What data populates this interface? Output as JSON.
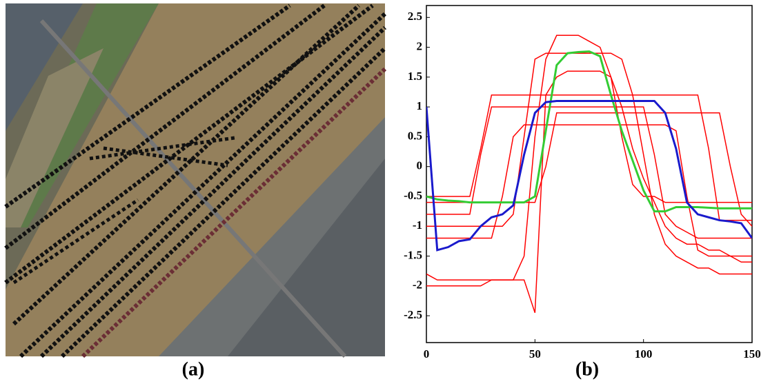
{
  "image_panel": {
    "caption": "(a)"
  },
  "chart_data": {
    "type": "line",
    "caption": "(b)",
    "x": [
      0,
      5,
      10,
      15,
      20,
      25,
      30,
      35,
      40,
      45,
      50,
      55,
      60,
      65,
      70,
      75,
      80,
      85,
      90,
      95,
      100,
      105,
      110,
      115,
      120,
      125,
      130,
      135,
      140,
      145,
      150
    ],
    "xlim": [
      0,
      150
    ],
    "xticks": [
      0,
      50,
      100,
      150
    ],
    "ylim": [
      -2.95,
      2.7
    ],
    "yticks": [
      -2.5,
      -2,
      -1.5,
      -1,
      -0.5,
      0,
      0.5,
      1,
      1.5,
      2,
      2.5
    ],
    "series": [
      {
        "color": "#ff0000",
        "values": [
          -0.8,
          -0.8,
          -0.8,
          -0.8,
          -0.8,
          0.2,
          1.0,
          1.0,
          1.0,
          1.0,
          1.0,
          1.0,
          1.0,
          1.0,
          1.0,
          1.0,
          1.0,
          1.0,
          1.0,
          1.0,
          1.0,
          0.2,
          -0.8,
          -1.0,
          -1.1,
          -1.2,
          -1.2,
          -1.2,
          -1.2,
          -1.2,
          -1.2
        ]
      },
      {
        "color": "#ff0000",
        "values": [
          -1.8,
          -1.9,
          -1.9,
          -1.9,
          -1.9,
          -1.9,
          -1.9,
          -1.9,
          -1.9,
          -1.5,
          0.5,
          1.8,
          2.2,
          2.2,
          2.2,
          2.1,
          2.0,
          1.5,
          0.5,
          -0.3,
          -0.5,
          -0.5,
          -0.6,
          -0.6,
          -0.6,
          -0.6,
          -0.6,
          -0.6,
          -0.6,
          -0.6,
          -0.6
        ]
      },
      {
        "color": "#ff0000",
        "values": [
          -1.2,
          -1.2,
          -1.2,
          -1.2,
          -1.2,
          -1.2,
          -1.2,
          -0.5,
          0.5,
          0.7,
          0.7,
          0.7,
          0.7,
          0.7,
          0.7,
          0.7,
          0.7,
          0.7,
          0.7,
          0.7,
          0.7,
          0.7,
          0.7,
          0.6,
          -0.5,
          -1.4,
          -1.5,
          -1.5,
          -1.5,
          -1.6,
          -1.6
        ]
      },
      {
        "color": "#ff0000",
        "values": [
          -0.5,
          -0.5,
          -0.5,
          -0.5,
          -0.5,
          0.3,
          1.2,
          1.2,
          1.2,
          1.2,
          1.2,
          1.2,
          1.2,
          1.2,
          1.2,
          1.2,
          1.2,
          1.2,
          1.2,
          1.2,
          1.2,
          1.2,
          1.2,
          1.2,
          1.2,
          1.2,
          0.3,
          -0.9,
          -0.9,
          -0.9,
          -0.9
        ]
      },
      {
        "color": "#ff0000",
        "values": [
          -2.0,
          -2.0,
          -2.0,
          -2.0,
          -2.0,
          -2.0,
          -1.9,
          -1.9,
          -1.9,
          -1.9,
          -2.45,
          1.2,
          1.5,
          1.6,
          1.6,
          1.6,
          1.6,
          1.5,
          1.0,
          0.3,
          -0.2,
          -0.6,
          -1.0,
          -1.2,
          -1.3,
          -1.3,
          -1.4,
          -1.4,
          -1.5,
          -1.5,
          -1.5
        ]
      },
      {
        "color": "#ff0000",
        "values": [
          -1.0,
          -1.0,
          -1.0,
          -1.0,
          -1.0,
          -1.0,
          -1.0,
          -1.0,
          -0.8,
          0.5,
          1.8,
          1.9,
          1.9,
          1.9,
          1.9,
          1.9,
          1.9,
          1.9,
          1.8,
          1.2,
          0.2,
          -0.8,
          -1.3,
          -1.5,
          -1.6,
          -1.7,
          -1.7,
          -1.8,
          -1.8,
          -1.8,
          -1.8
        ]
      },
      {
        "color": "#ff0000",
        "values": [
          -0.6,
          -0.6,
          -0.6,
          -0.6,
          -0.6,
          -0.6,
          -0.6,
          -0.6,
          -0.6,
          -0.6,
          -0.6,
          0.0,
          0.9,
          0.9,
          0.9,
          0.9,
          0.9,
          0.9,
          0.9,
          0.9,
          0.9,
          0.9,
          0.9,
          0.9,
          0.9,
          0.9,
          0.9,
          0.9,
          0.0,
          -0.8,
          -1.0
        ]
      },
      {
        "color": "#33cc33",
        "values": [
          -0.5,
          -0.55,
          -0.57,
          -0.58,
          -0.6,
          -0.6,
          -0.6,
          -0.6,
          -0.6,
          -0.6,
          -0.5,
          0.6,
          1.7,
          1.9,
          1.92,
          1.93,
          1.85,
          1.2,
          0.6,
          0.1,
          -0.4,
          -0.75,
          -0.75,
          -0.68,
          -0.68,
          -0.68,
          -0.69,
          -0.7,
          -0.7,
          -0.7,
          -0.7
        ]
      },
      {
        "color": "#1a1acc",
        "values": [
          1.0,
          -1.4,
          -1.35,
          -1.25,
          -1.22,
          -1.0,
          -0.85,
          -0.8,
          -0.65,
          0.2,
          0.9,
          1.08,
          1.1,
          1.1,
          1.1,
          1.1,
          1.1,
          1.1,
          1.1,
          1.1,
          1.1,
          1.1,
          0.9,
          0.3,
          -0.6,
          -0.8,
          -0.85,
          -0.9,
          -0.92,
          -0.95,
          -1.2
        ]
      }
    ]
  }
}
